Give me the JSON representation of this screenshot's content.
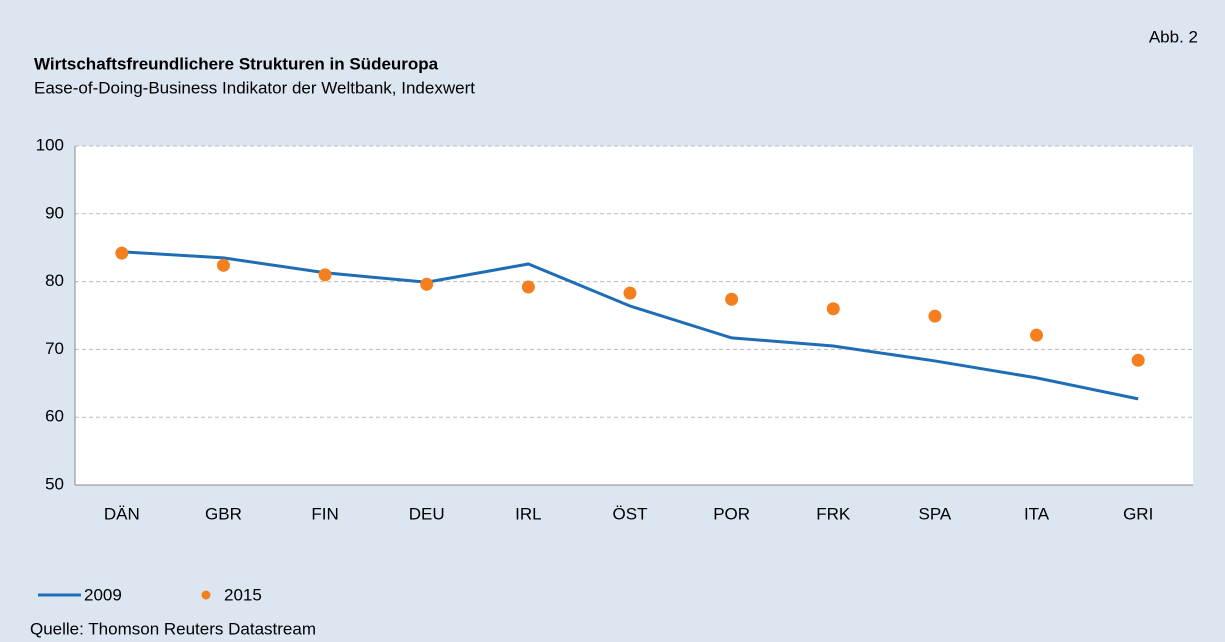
{
  "chart_data": {
    "type": "line",
    "title": "Wirtschaftsfreundlichere Strukturen in Südeuropa",
    "subtitle": "Ease-of-Doing-Business Indikator der Weltbank, Indexwert",
    "annotation": "Abb. 2",
    "source": "Quelle: Thomson Reuters Datastream",
    "categories": [
      "DÄN",
      "GBR",
      "FIN",
      "DEU",
      "IRL",
      "ÖST",
      "POR",
      "FRK",
      "SPA",
      "ITA",
      "GRI"
    ],
    "series": [
      {
        "name": "2009",
        "color": "#1f6db5",
        "style": "line",
        "values": [
          84.4,
          83.5,
          81.3,
          79.9,
          82.6,
          76.4,
          71.7,
          70.5,
          68.3,
          65.8,
          62.7
        ]
      },
      {
        "name": "2015",
        "color": "#f47f1f",
        "style": "markers",
        "values": [
          84.2,
          82.4,
          81.0,
          79.6,
          79.2,
          78.3,
          77.4,
          76.0,
          74.9,
          72.1,
          68.4
        ]
      }
    ],
    "ylim": [
      50,
      100
    ],
    "yticks": [
      50,
      60,
      70,
      80,
      90,
      100
    ],
    "grid": true
  }
}
